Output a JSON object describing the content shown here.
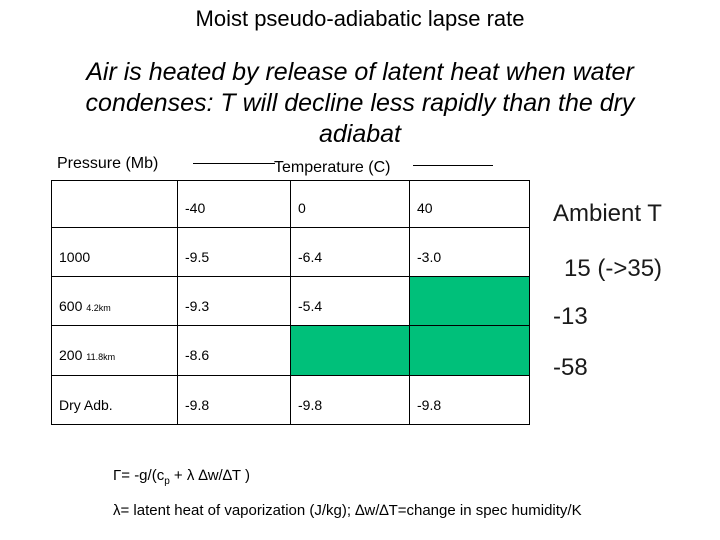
{
  "title": "Moist pseudo-adiabatic lapse rate",
  "subtitle": "Air is heated by release of latent heat when water condenses: T will decline less rapidly than the dry adiabat",
  "pressure_label": "Pressure (Mb)",
  "temperature_label": "Temperature (C)",
  "table": {
    "header": [
      "",
      "-40",
      "0",
      "40"
    ],
    "rows": [
      {
        "pressure": "1000",
        "alt": "",
        "values": [
          "-9.5",
          "-6.4",
          "-3.0"
        ]
      },
      {
        "pressure": "600",
        "alt": "4.2km",
        "values": [
          "-9.3",
          "-5.4",
          ""
        ]
      },
      {
        "pressure": "200",
        "alt": "11.8km",
        "values": [
          "-8.6",
          "",
          ""
        ]
      },
      {
        "pressure": "Dry Adb.",
        "alt": "",
        "values": [
          "-9.8",
          "-9.8",
          "-9.8"
        ]
      }
    ],
    "fill_color": "#00c07a"
  },
  "ambient": {
    "label": "Ambient T",
    "values": [
      "15 (->35)",
      "-13",
      "-58"
    ]
  },
  "formula": {
    "lhs": "Γ= -g/(c",
    "sub": "p",
    "rhs": " + λ ∆w/∆T )"
  },
  "definition": "λ= latent heat of vaporization (J/kg); ∆w/∆T=change in spec humidity/K"
}
